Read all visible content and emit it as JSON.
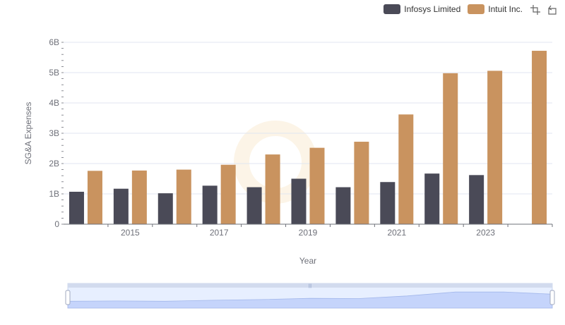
{
  "legend": {
    "series": [
      {
        "label": "Infosys Limited",
        "color": "#4a4a57"
      },
      {
        "label": "Intuit Inc.",
        "color": "#c9935f"
      }
    ]
  },
  "toolbox": {
    "icons": [
      "zoom-icon",
      "reset-icon"
    ]
  },
  "chart_data": {
    "type": "bar",
    "xlabel": "Year",
    "ylabel": "SG&A Expenses",
    "ylim": [
      0,
      6000000000
    ],
    "yticks": [
      "0",
      "1B",
      "2B",
      "3B",
      "4B",
      "5B",
      "6B"
    ],
    "xticks": [
      "2015",
      "2017",
      "2019",
      "2021",
      "2023"
    ],
    "categories": [
      "2014",
      "2015",
      "2016",
      "2017",
      "2018",
      "2019",
      "2020",
      "2021",
      "2022",
      "2023",
      "2024"
    ],
    "grid": true,
    "legend_position": "top-right",
    "series": [
      {
        "name": "Infosys Limited",
        "color": "#4a4a57",
        "values": [
          1070000000,
          1170000000,
          1020000000,
          1270000000,
          1220000000,
          1500000000,
          1220000000,
          1390000000,
          1670000000,
          1620000000,
          null
        ]
      },
      {
        "name": "Intuit Inc.",
        "color": "#c9935f",
        "values": [
          1760000000,
          1770000000,
          1800000000,
          1960000000,
          2300000000,
          2520000000,
          2720000000,
          3620000000,
          4980000000,
          5060000000,
          5720000000
        ]
      }
    ]
  },
  "data_zoom": {
    "start": 0,
    "end": 100
  }
}
